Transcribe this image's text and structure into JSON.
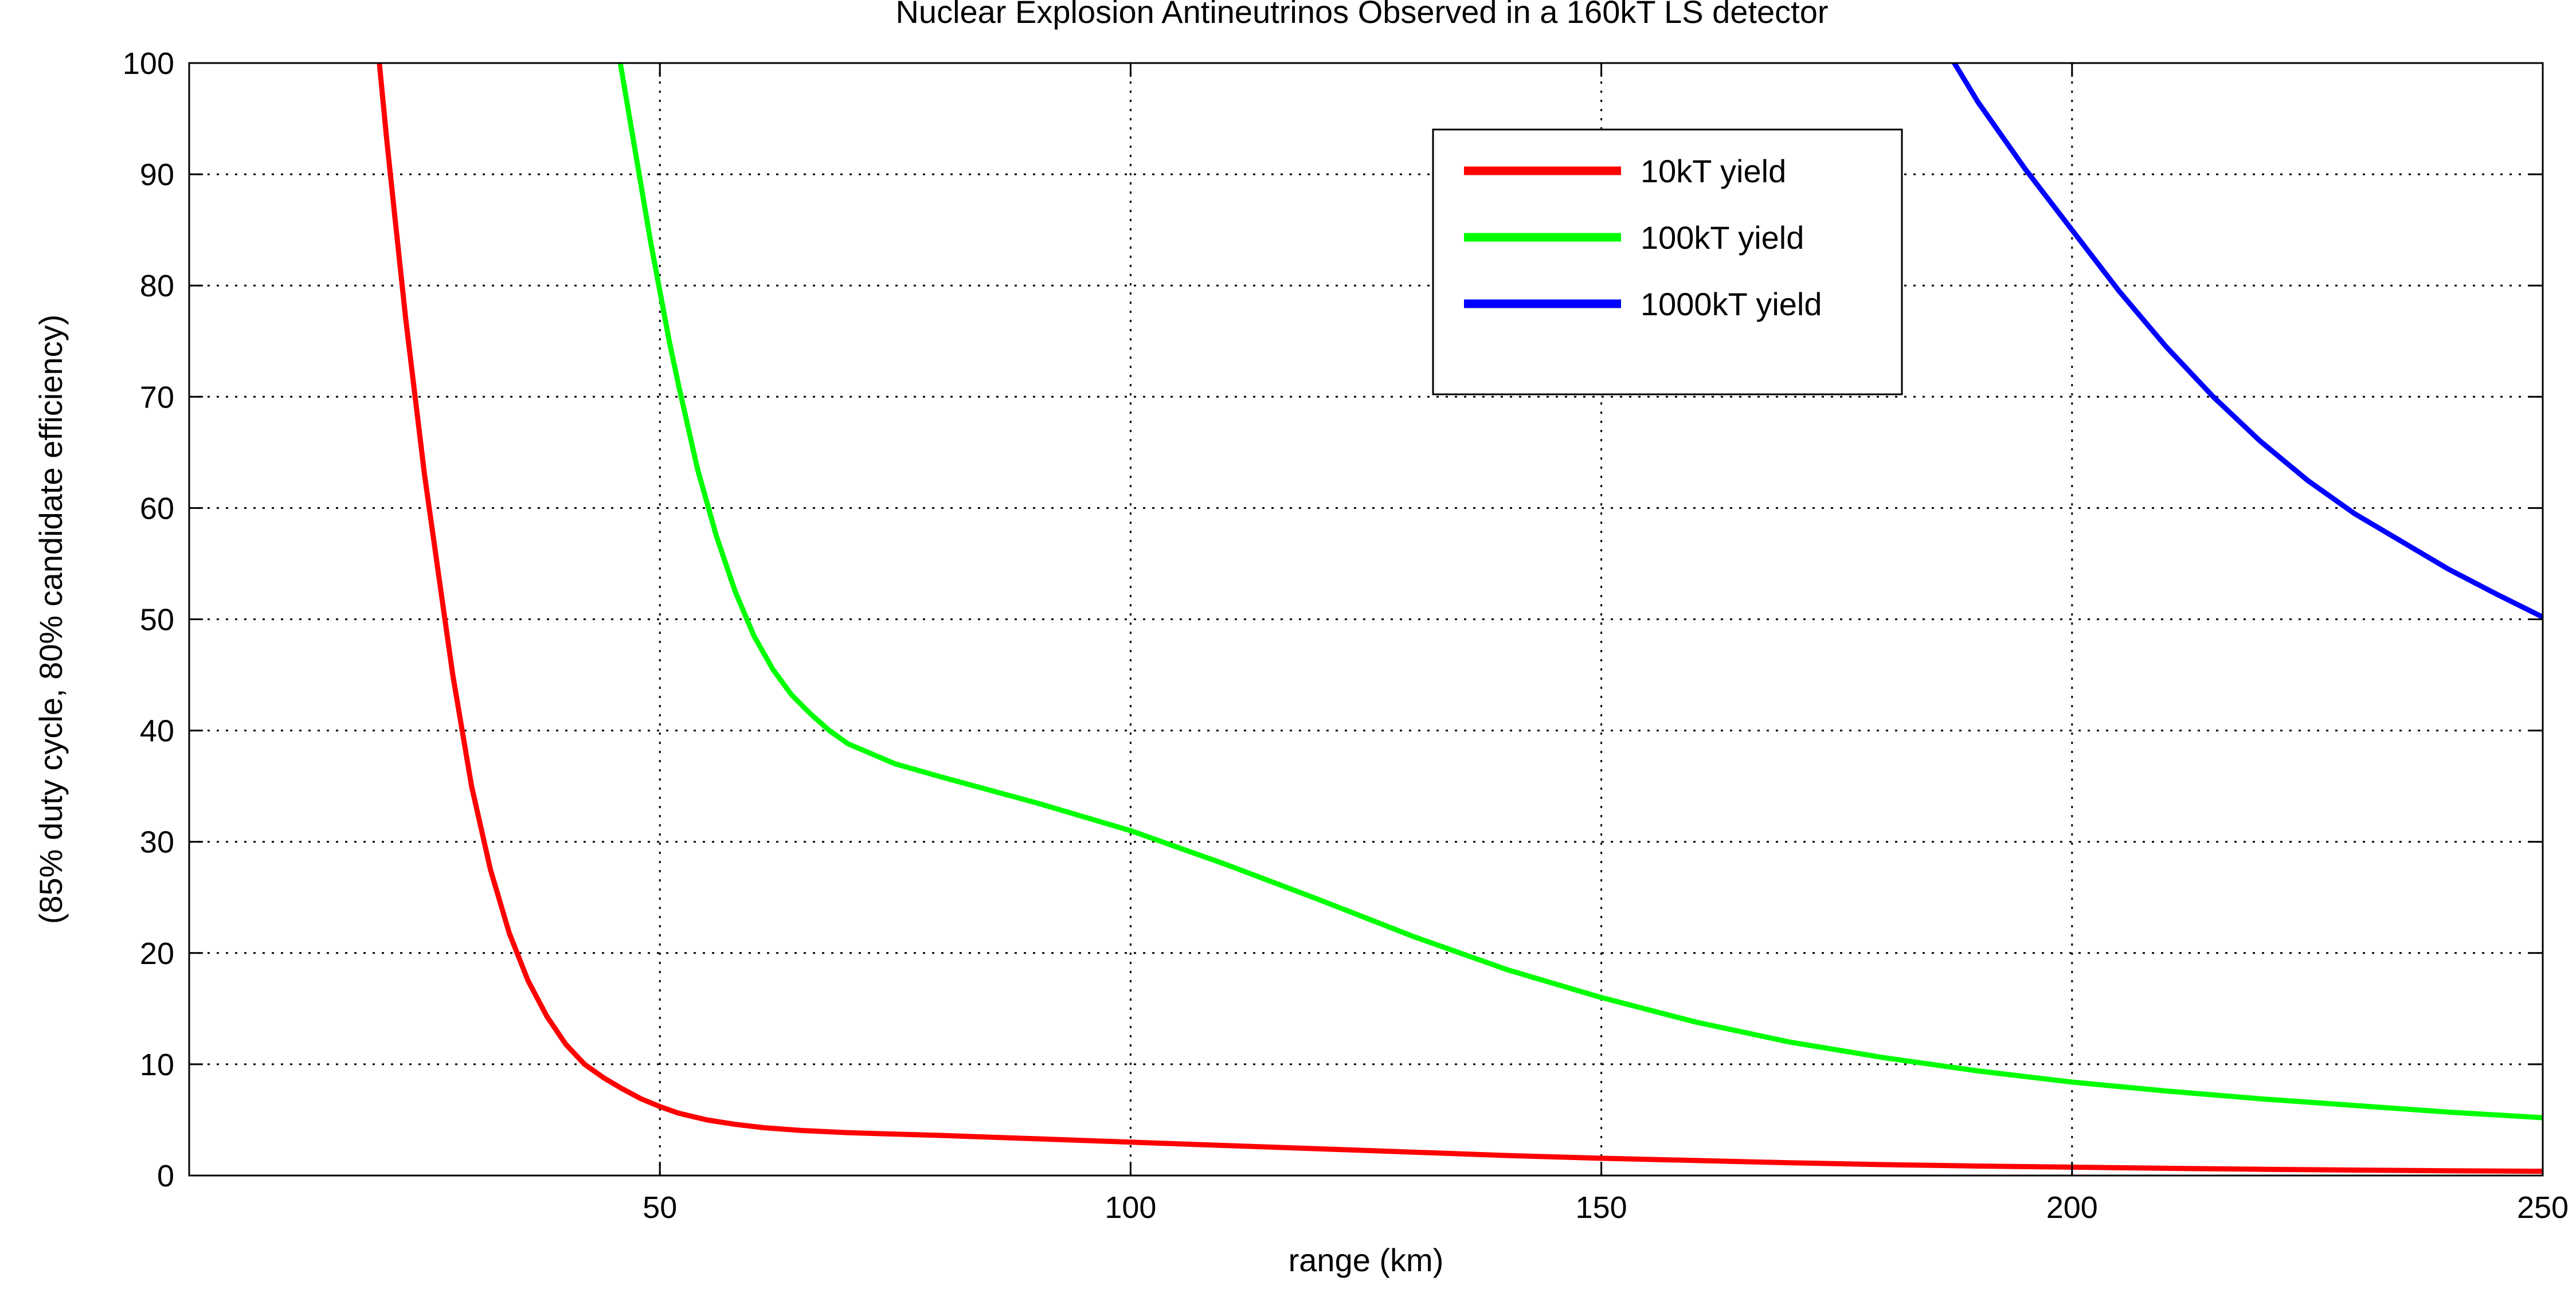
{
  "chart_data": {
    "type": "line",
    "title": "Nuclear Explosion Antineutrinos Observed in a 160kT LS detector",
    "xlabel": "range (km)",
    "ylabel": "(85% duty cycle, 80% candidate efficiency)",
    "xlim": [
      0,
      250
    ],
    "ylim": [
      0,
      100
    ],
    "x_ticks": [
      50,
      100,
      150,
      200,
      250
    ],
    "y_ticks": [
      0,
      10,
      20,
      30,
      40,
      50,
      60,
      70,
      80,
      90,
      100
    ],
    "grid": true,
    "legend_position": "top-right",
    "series": [
      {
        "name": "10kT yield",
        "color": "#ff0000",
        "x": [
          20.2,
          21,
          22,
          23,
          24,
          25,
          26,
          27,
          28,
          30,
          32,
          34,
          36,
          38,
          40,
          42,
          44,
          46,
          48,
          50,
          52,
          55,
          58,
          61,
          65,
          70,
          80,
          90,
          100,
          110,
          120,
          130,
          140,
          150,
          160,
          170,
          180,
          190,
          200,
          210,
          220,
          230,
          240,
          250
        ],
        "y": [
          100,
          93,
          85,
          77,
          70,
          63,
          57,
          51,
          45,
          35,
          27.5,
          21.8,
          17.5,
          14.3,
          11.8,
          10,
          8.8,
          7.8,
          6.9,
          6.2,
          5.6,
          5,
          4.6,
          4.3,
          4.05,
          3.85,
          3.6,
          3.3,
          3,
          2.7,
          2.4,
          2.1,
          1.8,
          1.55,
          1.35,
          1.15,
          0.98,
          0.85,
          0.75,
          0.65,
          0.56,
          0.49,
          0.43,
          0.38
        ]
      },
      {
        "name": "100kT yield",
        "color": "#00ff00",
        "x": [
          45.8,
          47,
          48,
          49,
          50,
          51,
          52,
          54,
          56,
          58,
          60,
          62,
          64,
          66,
          68,
          70,
          75,
          80,
          90,
          100,
          110,
          120,
          130,
          140,
          150,
          160,
          170,
          180,
          190,
          200,
          210,
          220,
          230,
          240,
          250
        ],
        "y": [
          100,
          94,
          89,
          84,
          79.5,
          75,
          71,
          63.5,
          57.5,
          52.5,
          48.5,
          45.5,
          43.2,
          41.5,
          40,
          38.8,
          37,
          35.8,
          33.5,
          31,
          28,
          24.8,
          21.5,
          18.5,
          16,
          13.8,
          12,
          10.6,
          9.4,
          8.4,
          7.6,
          6.9,
          6.3,
          5.7,
          5.2
        ]
      },
      {
        "name": "1000kT yield",
        "color": "#0000ff",
        "x": [
          187.5,
          190,
          195,
          200,
          205,
          210,
          215,
          220,
          225,
          230,
          235,
          240,
          245,
          250
        ],
        "y": [
          100,
          96.5,
          90.5,
          85,
          79.5,
          74.5,
          70,
          66,
          62.5,
          59.5,
          57,
          54.5,
          52.3,
          50.2
        ]
      }
    ]
  }
}
